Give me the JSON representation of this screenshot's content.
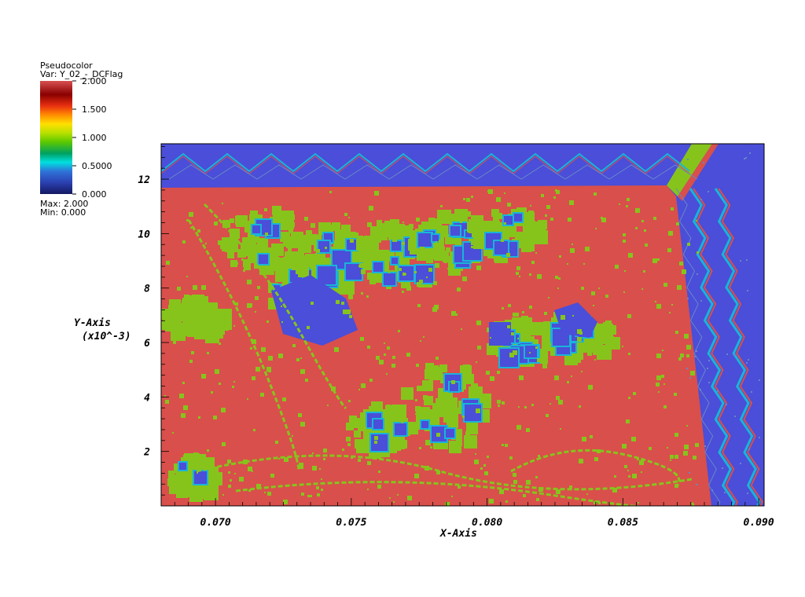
{
  "legend": {
    "plot_type": "Pseudocolor",
    "var_label": "Var: Y_02_-_DCFlag",
    "max_label": "Max:  2.000",
    "min_label": "Min:  0.000",
    "ticks": [
      "2.000",
      "1.500",
      "1.000",
      "0.5000",
      "0.000"
    ],
    "colormap": [
      "#1a1f6e",
      "#2c4fc2",
      "#00e4e4",
      "#00a050",
      "#7fd000",
      "#f0e000",
      "#ff8000",
      "#e03010",
      "#8b0000",
      "#d84a4a"
    ]
  },
  "colors": {
    "field_red": "#d94f4b",
    "field_green": "#86c41c",
    "field_blue": "#4a4ed8",
    "field_cyan": "#1ab4d8"
  },
  "chart_data": {
    "type": "heatmap",
    "title": "",
    "xlabel": "X-Axis",
    "ylabel": "Y-Axis",
    "ylabel_units": "(x10^-3)",
    "xlim": [
      0.068,
      0.0902
    ],
    "ylim": [
      0.0,
      0.0133
    ],
    "x_ticks": [
      "0.070",
      "0.075",
      "0.080",
      "0.085",
      "0.090"
    ],
    "y_ticks": [
      "2",
      "4",
      "6",
      "8",
      "10",
      "12"
    ],
    "value_range": [
      0.0,
      2.0
    ],
    "variable": "Y_02_-_DCFlag"
  }
}
